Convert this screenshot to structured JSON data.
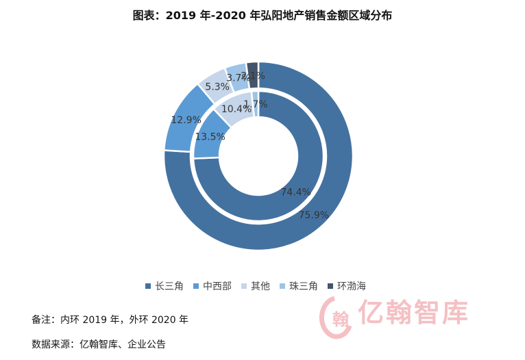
{
  "title": "图表：2019 年-2020 年弘阳地产销售金额区域分布",
  "notes": {
    "remark": "备注：内环 2019 年，外环 2020 年",
    "source": "数据来源：亿翰智库、企业公告"
  },
  "watermark": {
    "text": "亿翰智库",
    "logo_char": "翰"
  },
  "colors": {
    "长三角": "#4472a0",
    "中西部": "#5b9bd5",
    "其他": "#c5d5ea",
    "珠三角": "#9dc3e6",
    "环渤海": "#44546a"
  },
  "chart_data": {
    "type": "donut",
    "categories": [
      "长三角",
      "中西部",
      "其他",
      "珠三角",
      "环渤海"
    ],
    "series": [
      {
        "ring": "inner",
        "year": "2019",
        "values": [
          74.4,
          13.5,
          10.4,
          1.7,
          0
        ],
        "labels": [
          "74.4%",
          "13.5%",
          "10.4%",
          "1.7%",
          ""
        ]
      },
      {
        "ring": "outer",
        "year": "2020",
        "values": [
          75.9,
          12.9,
          5.3,
          3.7,
          2.1
        ],
        "labels": [
          "75.9%",
          "12.9%",
          "5.3%",
          "3.7%",
          "2.1%"
        ]
      }
    ],
    "legend": [
      "长三角",
      "中西部",
      "其他",
      "珠三角",
      "环渤海"
    ],
    "legend_position": "bottom"
  }
}
